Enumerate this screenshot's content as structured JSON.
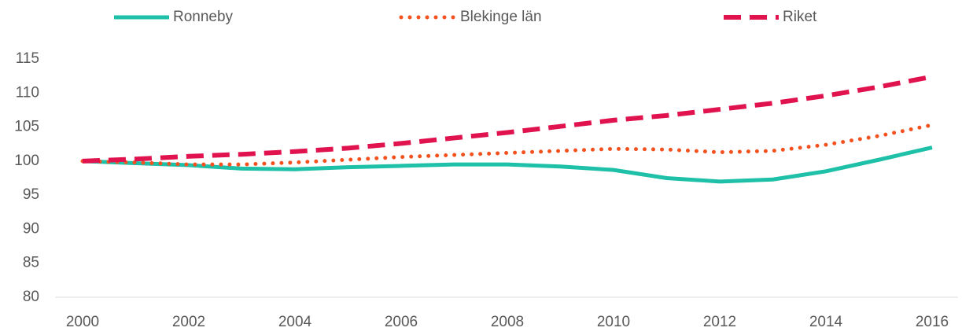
{
  "chart_data": {
    "type": "line",
    "x": [
      2000,
      2001,
      2002,
      2003,
      2004,
      2005,
      2006,
      2007,
      2008,
      2009,
      2010,
      2011,
      2012,
      2013,
      2014,
      2015,
      2016
    ],
    "series": [
      {
        "name": "Ronneby",
        "color": "#1ec0a8",
        "style": "solid",
        "values": [
          100,
          99.7,
          99.4,
          98.9,
          98.8,
          99.1,
          99.3,
          99.5,
          99.5,
          99.2,
          98.7,
          97.5,
          97.0,
          97.3,
          98.5,
          100.2,
          102.0
        ]
      },
      {
        "name": "Blekinge län",
        "color": "#f4511e",
        "style": "dotted",
        "values": [
          100,
          99.8,
          99.5,
          99.5,
          99.8,
          100.2,
          100.6,
          100.9,
          101.2,
          101.5,
          101.8,
          101.7,
          101.3,
          101.5,
          102.4,
          103.7,
          105.3
        ]
      },
      {
        "name": "Riket",
        "color": "#e0134f",
        "style": "dashed",
        "values": [
          100,
          100.3,
          100.7,
          101.0,
          101.4,
          101.9,
          102.6,
          103.4,
          104.2,
          105.1,
          106.0,
          106.7,
          107.6,
          108.5,
          109.6,
          110.9,
          112.4
        ]
      }
    ],
    "xlim": [
      2000,
      2016
    ],
    "xticks": [
      2000,
      2002,
      2004,
      2006,
      2008,
      2010,
      2012,
      2014,
      2016
    ],
    "ylim": [
      80,
      115
    ],
    "yticks": [
      80,
      85,
      90,
      95,
      100,
      105,
      110,
      115
    ],
    "grid": false,
    "legend": "top"
  }
}
